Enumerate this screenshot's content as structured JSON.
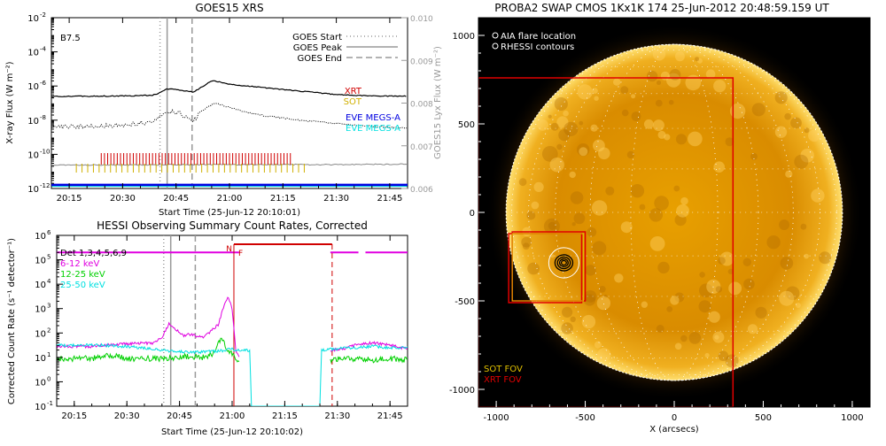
{
  "chart_data": [
    {
      "id": "goes",
      "type": "line",
      "title": "GOES15 XRS",
      "class_label": "B7.5",
      "xlabel": "Start Time (25-Jun-12 20:10:01)",
      "ylabel": "X-ray Flux (W m⁻²)",
      "y2label": "GOES15 Lyx Flux (W m⁻²)",
      "xlim": [
        10,
        110
      ],
      "ylim_log": [
        -12,
        -2
      ],
      "y2lim": [
        0.006,
        0.01
      ],
      "x_ticks": [
        {
          "v": 15,
          "label": "20:15"
        },
        {
          "v": 30,
          "label": "20:30"
        },
        {
          "v": 45,
          "label": "20:45"
        },
        {
          "v": 60,
          "label": "21:00"
        },
        {
          "v": 75,
          "label": "21:15"
        },
        {
          "v": 90,
          "label": "21:30"
        },
        {
          "v": 105,
          "label": "21:45"
        }
      ],
      "y_ticks": [
        {
          "v": -2,
          "label": "10"
        },
        {
          "v": -4,
          "label": "10"
        },
        {
          "v": -6,
          "label": "10"
        },
        {
          "v": -8,
          "label": "10"
        },
        {
          "v": -10,
          "label": "10"
        },
        {
          "v": -12,
          "label": "10"
        }
      ],
      "y_tick_exps": [
        "-2",
        "-4",
        "-6",
        "-8",
        "-10",
        "-12"
      ],
      "y2_ticks": [
        {
          "v": 0.01,
          "label": "0.010"
        },
        {
          "v": 0.009,
          "label": "0.009"
        },
        {
          "v": 0.008,
          "label": "0.008"
        },
        {
          "v": 0.007,
          "label": "0.007"
        },
        {
          "v": 0.006,
          "label": "0.006"
        }
      ],
      "goes_lines": {
        "start": 40.5,
        "peak": 42.5,
        "end": 49.5
      },
      "legend": [
        "GOES Start",
        "GOES Peak",
        "GOES End"
      ],
      "legend_position": "top-right",
      "instrument_labels": [
        {
          "text": "XRT",
          "color": "#d00000"
        },
        {
          "text": "SOT",
          "color": "#d0b000"
        },
        {
          "text": "EVE MEGS-A",
          "color": "#0000e0"
        },
        {
          "text": "EVE MEGS-A",
          "color": "#00e0e0"
        }
      ],
      "series": [
        {
          "name": "GOES long",
          "log": true,
          "x": [
            10,
            20,
            30,
            38,
            40,
            42,
            44,
            46,
            50,
            53,
            55,
            57,
            60,
            65,
            70,
            75,
            80,
            85,
            90,
            95,
            100,
            110
          ],
          "values": [
            -6.62,
            -6.6,
            -6.58,
            -6.55,
            -6.45,
            -6.2,
            -6.15,
            -6.25,
            -6.35,
            -5.95,
            -5.7,
            -5.75,
            -5.9,
            -6.0,
            -6.1,
            -6.2,
            -6.3,
            -6.4,
            -6.5,
            -6.55,
            -6.58,
            -6.6
          ]
        },
        {
          "name": "GOES short",
          "log": true,
          "x": [
            10,
            20,
            30,
            38,
            40,
            42,
            44,
            46,
            48,
            50,
            52,
            54,
            56,
            60,
            65,
            70,
            80,
            90,
            100,
            110
          ],
          "values": [
            -8.4,
            -8.35,
            -8.3,
            -8.1,
            -7.9,
            -7.65,
            -7.5,
            -7.6,
            -7.85,
            -8.0,
            -7.5,
            -7.2,
            -7.0,
            -7.25,
            -7.55,
            -7.75,
            -8.0,
            -8.2,
            -8.35,
            -8.45
          ]
        },
        {
          "name": "Lyman alpha",
          "log": false,
          "x": [
            10,
            30,
            50,
            70,
            90,
            110
          ],
          "values": [
            0.00655,
            0.00655,
            0.00656,
            0.00656,
            0.00656,
            0.00657
          ]
        }
      ],
      "xrt_times": {
        "start": 24,
        "end": 78,
        "step": 0.9
      },
      "sot_times": {
        "start": 17,
        "end": 81,
        "step": 1.6
      },
      "eve_values": [
        -11.8,
        -11.88
      ]
    },
    {
      "id": "hessi",
      "type": "line",
      "title": "HESSI Observing Summary Count Rates, Corrected",
      "xlabel": "Start Time (25-Jun-12 20:10:02)",
      "ylabel": "Corrected Count Rate (s⁻¹ detector⁻¹)",
      "xlim": [
        10,
        110
      ],
      "ylim_log": [
        -1,
        6
      ],
      "x_ticks": [
        {
          "v": 15,
          "label": "20:15"
        },
        {
          "v": 30,
          "label": "20:30"
        },
        {
          "v": 45,
          "label": "20:45"
        },
        {
          "v": 60,
          "label": "21:00"
        },
        {
          "v": 75,
          "label": "21:15"
        },
        {
          "v": 90,
          "label": "21:30"
        },
        {
          "v": 105,
          "label": "21:45"
        }
      ],
      "y_ticks": [
        {
          "v": 6,
          "label": "10"
        },
        {
          "v": 5,
          "label": "10"
        },
        {
          "v": 4,
          "label": "10"
        },
        {
          "v": 3,
          "label": "10"
        },
        {
          "v": 2,
          "label": "10"
        },
        {
          "v": 1,
          "label": "10"
        },
        {
          "v": 0,
          "label": "10"
        },
        {
          "v": -1,
          "label": "10"
        }
      ],
      "y_tick_exps": [
        "6",
        "5",
        "4",
        "3",
        "2",
        "1",
        "0",
        "-1"
      ],
      "goes_lines": {
        "start": 40.5,
        "peak": 42.5,
        "end": 49.5
      },
      "flags": {
        "N_label": "N",
        "F_label": "F",
        "N_x": 60.5,
        "F_x": 61.0,
        "end_x": 88.5
      },
      "legend": [
        {
          "text": "Det 1,3,4,5,6,9",
          "color": "#000000"
        },
        {
          "text": "6-12 keV",
          "color": "#e000e0"
        },
        {
          "text": "12-25 keV",
          "color": "#00d000"
        },
        {
          "text": "25-50 keV",
          "color": "#00e0e0"
        }
      ],
      "legend_position": "top-left",
      "magenta_bar": {
        "value": 5.3,
        "segments": [
          [
            10,
            62
          ],
          [
            88,
            96
          ],
          [
            98,
            110
          ]
        ]
      },
      "series": [
        {
          "name": "6-12 keV",
          "color": "#e000e0",
          "x": [
            10,
            20,
            25,
            30,
            38,
            40,
            42,
            44,
            46,
            48,
            50,
            52,
            54,
            56,
            57,
            58,
            59,
            60,
            61,
            62
          ],
          "values": [
            1.45,
            1.45,
            1.5,
            1.55,
            1.6,
            1.8,
            2.4,
            2.15,
            1.9,
            1.95,
            1.85,
            1.8,
            2.1,
            2.35,
            2.8,
            3.3,
            3.45,
            3.0,
            1.3,
            1.0
          ]
        },
        {
          "name": "6-12 keV post",
          "color": "#e000e0",
          "x": [
            88,
            92,
            96,
            100,
            105,
            110
          ],
          "values": [
            1.3,
            1.35,
            1.55,
            1.6,
            1.5,
            1.35
          ]
        },
        {
          "name": "12-25 keV",
          "color": "#00d000",
          "x": [
            10,
            20,
            25,
            30,
            40,
            44,
            48,
            52,
            55,
            56,
            57,
            58,
            59,
            60,
            61,
            62
          ],
          "values": [
            0.95,
            0.95,
            1.1,
            0.95,
            0.95,
            1.0,
            1.05,
            1.0,
            1.2,
            1.6,
            1.85,
            1.5,
            1.3,
            1.1,
            0.9,
            0.8
          ]
        },
        {
          "name": "12-25 keV post",
          "color": "#00d000",
          "x": [
            88,
            92,
            96,
            100,
            105,
            110
          ],
          "values": [
            0.9,
            0.95,
            0.95,
            0.9,
            0.95,
            0.9
          ]
        },
        {
          "name": "25-50 keV",
          "color": "#00e0e0",
          "x": [
            10,
            20,
            30,
            40,
            48,
            56,
            60,
            61,
            65,
            65.5,
            85,
            85.5,
            90,
            95,
            100,
            105,
            110
          ],
          "values": [
            1.5,
            1.52,
            1.45,
            1.3,
            1.2,
            1.25,
            1.35,
            1.3,
            1.3,
            -1.0,
            -1.0,
            1.3,
            1.35,
            1.4,
            1.45,
            1.4,
            1.4
          ]
        }
      ]
    },
    {
      "id": "swap",
      "type": "image",
      "title": "PROBA2 SWAP CMOS 1Kx1K 174 25-Jun-2012 20:48:59.159 UT",
      "xlabel": "X (arcsecs)",
      "xlim": [
        -1100,
        1100
      ],
      "ylim": [
        -1100,
        1100
      ],
      "solar_radius": 945,
      "x_ticks": [
        {
          "v": -1000,
          "label": "-1000"
        },
        {
          "v": -500,
          "label": "-500"
        },
        {
          "v": 0,
          "label": "0"
        },
        {
          "v": 500,
          "label": "500"
        },
        {
          "v": 1000,
          "label": "1000"
        }
      ],
      "y_ticks": [
        {
          "v": 1000,
          "label": "1000"
        },
        {
          "v": 500,
          "label": "500"
        },
        {
          "v": 0,
          "label": "0"
        },
        {
          "v": -500,
          "label": "-500"
        },
        {
          "v": -1000,
          "label": "-1000"
        }
      ],
      "legend": [
        {
          "text": "AIA flare location",
          "color": "#ffffff"
        },
        {
          "text": "RHESSI contours",
          "color": "#ffffff"
        }
      ],
      "fov_legend": [
        {
          "text": "SOT FOV",
          "color": "#e0c000"
        },
        {
          "text": "XRT FOV",
          "color": "#e00000"
        }
      ],
      "xrt_fov_large": {
        "x0": -1100,
        "x1": 330,
        "y0": -1100,
        "y1": 760
      },
      "xrt_fov_small": [
        {
          "x0": -930,
          "x1": -520,
          "y0": -510,
          "y1": -120
        },
        {
          "x0": -910,
          "x1": -500,
          "y0": -500,
          "y1": -110
        }
      ],
      "sot_fov": {
        "x0": -910,
        "x1": -510,
        "y0": -500,
        "y1": -120
      },
      "flare": {
        "x": -620,
        "y": -285,
        "circle_r": 85
      },
      "contour_radii": [
        50,
        36,
        24,
        14
      ]
    }
  ]
}
